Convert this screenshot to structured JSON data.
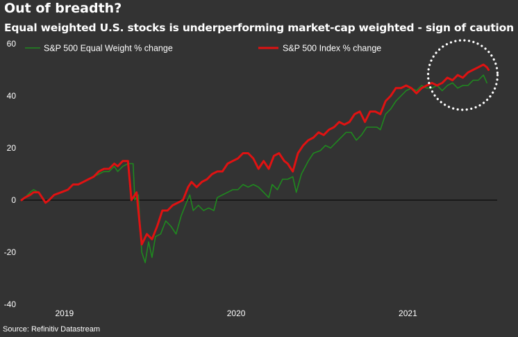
{
  "header": {
    "title": "Out of breadth?",
    "subtitle": "Equal weighted U.S. stocks is underperforming market-cap weighted - sign of caution"
  },
  "footer": {
    "source": "Source: Refinitiv Datastream"
  },
  "chart_data": {
    "type": "line",
    "title": "Out of breadth?",
    "subtitle": "Equal weighted U.S. stocks is underperforming market-cap weighted - sign of caution",
    "xlabel": "",
    "ylabel": "",
    "ylim": [
      -40,
      60
    ],
    "xlim": [
      2018.75,
      2021.52
    ],
    "yticks": [
      -40,
      -20,
      0,
      20,
      40,
      60
    ],
    "xticks": [
      {
        "value": 2019.0,
        "label": "2019"
      },
      {
        "value": 2020.0,
        "label": "2020"
      },
      {
        "value": 2021.0,
        "label": "2021"
      }
    ],
    "grid": false,
    "zero_line": true,
    "legend_position": "top",
    "colors": {
      "background": "#333333",
      "equal_weight": "#1f8a1f",
      "index": "#e01212",
      "zero_line": "#000000",
      "annotation": "#ffffff"
    },
    "annotations": [
      {
        "type": "dotted-circle",
        "center_x": 2021.32,
        "center_y": 48,
        "note": "highlights recent divergence"
      }
    ],
    "series": [
      {
        "name": "S&P 500 Equal Weight % change",
        "points": [
          [
            2018.75,
            0
          ],
          [
            2018.77,
            1
          ],
          [
            2018.8,
            3
          ],
          [
            2018.82,
            4
          ],
          [
            2018.85,
            3
          ],
          [
            2018.87,
            1
          ],
          [
            2018.89,
            -1
          ],
          [
            2018.91,
            0
          ],
          [
            2018.94,
            2
          ],
          [
            2018.98,
            3
          ],
          [
            2019.02,
            4
          ],
          [
            2019.05,
            6
          ],
          [
            2019.08,
            6
          ],
          [
            2019.11,
            7
          ],
          [
            2019.14,
            8
          ],
          [
            2019.17,
            9
          ],
          [
            2019.2,
            10
          ],
          [
            2019.23,
            11
          ],
          [
            2019.26,
            11
          ],
          [
            2019.29,
            13
          ],
          [
            2019.31,
            11
          ],
          [
            2019.34,
            13
          ],
          [
            2019.37,
            14
          ],
          [
            2019.4,
            14
          ],
          [
            2019.41,
            0
          ],
          [
            2019.43,
            2
          ],
          [
            2019.45,
            -20
          ],
          [
            2019.47,
            -24
          ],
          [
            2019.49,
            -16
          ],
          [
            2019.51,
            -22
          ],
          [
            2019.53,
            -14
          ],
          [
            2019.56,
            -13
          ],
          [
            2019.59,
            -8
          ],
          [
            2019.62,
            -10
          ],
          [
            2019.65,
            -13
          ],
          [
            2019.68,
            -6
          ],
          [
            2019.71,
            -1
          ],
          [
            2019.73,
            2
          ],
          [
            2019.75,
            -4
          ],
          [
            2019.78,
            -2
          ],
          [
            2019.81,
            -4
          ],
          [
            2019.84,
            -3
          ],
          [
            2019.87,
            -4
          ],
          [
            2019.89,
            1
          ],
          [
            2019.92,
            2
          ],
          [
            2019.95,
            3
          ],
          [
            2019.98,
            4
          ],
          [
            2020.01,
            4
          ],
          [
            2020.04,
            6
          ],
          [
            2020.07,
            5
          ],
          [
            2020.1,
            6
          ],
          [
            2020.13,
            5
          ],
          [
            2020.16,
            3
          ],
          [
            2020.19,
            1
          ],
          [
            2020.21,
            6
          ],
          [
            2020.24,
            4
          ],
          [
            2020.27,
            8
          ],
          [
            2020.3,
            8
          ],
          [
            2020.33,
            9
          ],
          [
            2020.35,
            3
          ],
          [
            2020.38,
            10
          ],
          [
            2020.42,
            15
          ],
          [
            2020.45,
            18
          ],
          [
            2020.49,
            19
          ],
          [
            2020.52,
            21
          ],
          [
            2020.55,
            20
          ],
          [
            2020.58,
            22
          ],
          [
            2020.61,
            24
          ],
          [
            2020.64,
            26
          ],
          [
            2020.67,
            26
          ],
          [
            2020.7,
            23
          ],
          [
            2020.73,
            25
          ],
          [
            2020.76,
            28
          ],
          [
            2020.79,
            28
          ],
          [
            2020.82,
            28
          ],
          [
            2020.84,
            27
          ],
          [
            2020.87,
            33
          ],
          [
            2020.9,
            35
          ],
          [
            2020.93,
            38
          ],
          [
            2020.96,
            40
          ],
          [
            2020.99,
            42
          ],
          [
            2021.02,
            43
          ],
          [
            2021.05,
            42
          ],
          [
            2021.08,
            44
          ],
          [
            2021.11,
            43
          ],
          [
            2021.14,
            43
          ],
          [
            2021.17,
            44
          ],
          [
            2021.2,
            42
          ],
          [
            2021.23,
            44
          ],
          [
            2021.26,
            45
          ],
          [
            2021.29,
            43
          ],
          [
            2021.32,
            44
          ],
          [
            2021.35,
            44
          ],
          [
            2021.38,
            46
          ],
          [
            2021.41,
            46
          ],
          [
            2021.44,
            48
          ],
          [
            2021.46,
            45
          ]
        ]
      },
      {
        "name": "S&P 500 Index % change",
        "points": [
          [
            2018.75,
            0
          ],
          [
            2018.77,
            1
          ],
          [
            2018.8,
            2
          ],
          [
            2018.82,
            3
          ],
          [
            2018.85,
            3
          ],
          [
            2018.87,
            1
          ],
          [
            2018.89,
            -1
          ],
          [
            2018.91,
            0
          ],
          [
            2018.94,
            2
          ],
          [
            2018.98,
            3
          ],
          [
            2019.02,
            4
          ],
          [
            2019.05,
            6
          ],
          [
            2019.08,
            6
          ],
          [
            2019.11,
            7
          ],
          [
            2019.14,
            8
          ],
          [
            2019.17,
            9
          ],
          [
            2019.2,
            11
          ],
          [
            2019.23,
            12
          ],
          [
            2019.26,
            12
          ],
          [
            2019.29,
            14
          ],
          [
            2019.31,
            13
          ],
          [
            2019.34,
            15
          ],
          [
            2019.37,
            15
          ],
          [
            2019.39,
            0
          ],
          [
            2019.42,
            3
          ],
          [
            2019.45,
            -17
          ],
          [
            2019.48,
            -13
          ],
          [
            2019.51,
            -15
          ],
          [
            2019.54,
            -10
          ],
          [
            2019.57,
            -4
          ],
          [
            2019.6,
            -4
          ],
          [
            2019.63,
            -2
          ],
          [
            2019.66,
            -1
          ],
          [
            2019.69,
            0
          ],
          [
            2019.72,
            5
          ],
          [
            2019.74,
            7
          ],
          [
            2019.77,
            5
          ],
          [
            2019.8,
            7
          ],
          [
            2019.83,
            8
          ],
          [
            2019.86,
            10
          ],
          [
            2019.89,
            11
          ],
          [
            2019.92,
            11
          ],
          [
            2019.95,
            14
          ],
          [
            2019.98,
            15
          ],
          [
            2020.01,
            16
          ],
          [
            2020.04,
            18
          ],
          [
            2020.07,
            18
          ],
          [
            2020.1,
            16
          ],
          [
            2020.13,
            12
          ],
          [
            2020.16,
            15
          ],
          [
            2020.19,
            12
          ],
          [
            2020.22,
            17
          ],
          [
            2020.25,
            18
          ],
          [
            2020.28,
            15
          ],
          [
            2020.3,
            14
          ],
          [
            2020.33,
            11
          ],
          [
            2020.36,
            18
          ],
          [
            2020.39,
            21
          ],
          [
            2020.42,
            23
          ],
          [
            2020.45,
            24
          ],
          [
            2020.48,
            26
          ],
          [
            2020.51,
            25
          ],
          [
            2020.54,
            27
          ],
          [
            2020.57,
            28
          ],
          [
            2020.6,
            30
          ],
          [
            2020.63,
            29
          ],
          [
            2020.66,
            30
          ],
          [
            2020.69,
            33
          ],
          [
            2020.72,
            34
          ],
          [
            2020.75,
            30
          ],
          [
            2020.78,
            34
          ],
          [
            2020.81,
            34
          ],
          [
            2020.84,
            33
          ],
          [
            2020.87,
            38
          ],
          [
            2020.9,
            40
          ],
          [
            2020.93,
            43
          ],
          [
            2020.96,
            43
          ],
          [
            2020.99,
            44
          ],
          [
            2021.02,
            43
          ],
          [
            2021.05,
            41
          ],
          [
            2021.08,
            43
          ],
          [
            2021.11,
            44
          ],
          [
            2021.14,
            45
          ],
          [
            2021.17,
            44
          ],
          [
            2021.2,
            45
          ],
          [
            2021.23,
            47
          ],
          [
            2021.26,
            46
          ],
          [
            2021.29,
            48
          ],
          [
            2021.32,
            47
          ],
          [
            2021.35,
            49
          ],
          [
            2021.38,
            50
          ],
          [
            2021.41,
            51
          ],
          [
            2021.44,
            52
          ],
          [
            2021.46,
            51
          ],
          [
            2021.47,
            50
          ]
        ]
      }
    ]
  }
}
